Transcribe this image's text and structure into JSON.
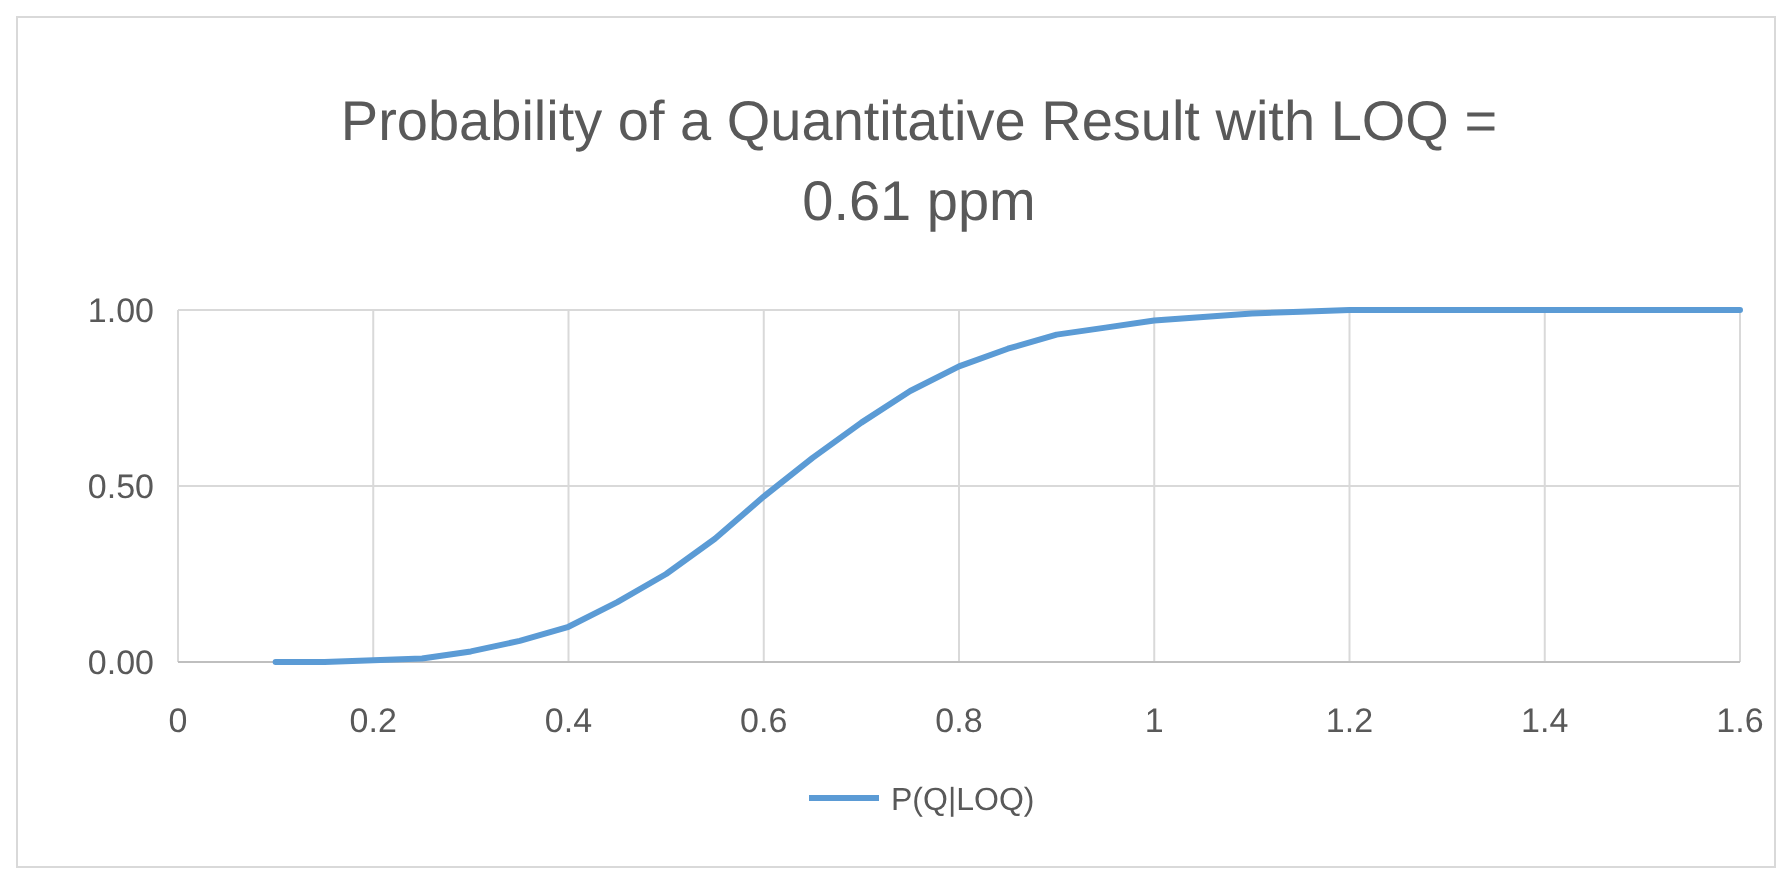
{
  "chart_data": {
    "type": "line",
    "title": "Probability of a Quantitative Result with LOQ = 0.61 ppm",
    "x": [
      0.1,
      0.15,
      0.2,
      0.25,
      0.3,
      0.35,
      0.4,
      0.45,
      0.5,
      0.55,
      0.6,
      0.65,
      0.7,
      0.75,
      0.8,
      0.85,
      0.9,
      0.95,
      1.0,
      1.05,
      1.1,
      1.15,
      1.2,
      1.3,
      1.4,
      1.5,
      1.6
    ],
    "series": [
      {
        "name": "P(Q|LOQ)",
        "color": "#5b9bd5",
        "values": [
          0,
          0,
          0.005,
          0.01,
          0.03,
          0.06,
          0.1,
          0.17,
          0.25,
          0.35,
          0.47,
          0.58,
          0.68,
          0.77,
          0.84,
          0.89,
          0.93,
          0.95,
          0.97,
          0.98,
          0.99,
          0.995,
          1,
          1,
          1,
          1,
          1
        ]
      }
    ],
    "xlim": [
      0,
      1.6
    ],
    "xticks": [
      0,
      0.2,
      0.4,
      0.6,
      0.8,
      1,
      1.2,
      1.4,
      1.6
    ],
    "ylim": [
      0,
      1
    ],
    "yticks": [
      {
        "value": 0,
        "label": "0.00"
      },
      {
        "value": 0.5,
        "label": "0.50"
      },
      {
        "value": 1,
        "label": "1.00"
      }
    ],
    "grid": true,
    "legend": "bottom",
    "marker": "none",
    "line_style": "solid"
  }
}
